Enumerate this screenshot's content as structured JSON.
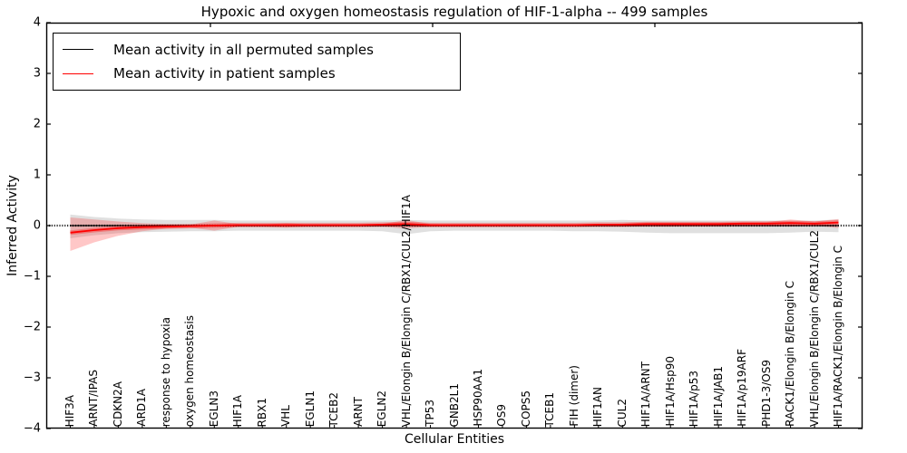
{
  "chart_data": {
    "type": "line",
    "title": "Hypoxic and oxygen homeostasis regulation of HIF-1-alpha -- 499 samples",
    "sample_count": 499,
    "xlabel": "Cellular Entities",
    "ylabel": "Inferred Activity",
    "ylim": [
      -4,
      4
    ],
    "yticks": [
      4,
      3,
      2,
      1,
      0,
      -1,
      -2,
      -3,
      -4
    ],
    "grid": false,
    "zero_line": true,
    "legend": {
      "position": "upper left",
      "entries": [
        {
          "label": "Mean activity in all permuted samples",
          "color": "#000000"
        },
        {
          "label": "Mean activity in patient samples",
          "color": "#ff0000"
        }
      ]
    },
    "categories": [
      "HIF3A",
      "ARNT/IPAS",
      "CDKN2A",
      "ARD1A",
      "response to hypoxia",
      "oxygen homeostasis",
      "EGLN3",
      "HIF1A",
      "RBX1",
      "VHL",
      "EGLN1",
      "TCEB2",
      "ARNT",
      "EGLN2",
      "VHL/Elongin B/Elongin C/RBX1/CUL2/HIF1A",
      "TP53",
      "GNB2L1",
      "HSP90AA1",
      "OS9",
      "COPS5",
      "TCEB1",
      "FIH (dimer)",
      "HIF1AN",
      "CUL2",
      "HIF1A/ARNT",
      "HIF1A/Hsp90",
      "HIF1A/p53",
      "HIF1A/JAB1",
      "HIF1A/p19ARF",
      "PHD1-3/OS9",
      "RACK1/Elongin B/Elongin C",
      "VHL/Elongin B/Elongin C/RBX1/CUL2",
      "HIF1A/RACK1/Elongin B/Elongin C"
    ],
    "series": [
      {
        "name": "Mean activity in all permuted samples",
        "color": "#000000",
        "values": [
          0,
          0,
          0,
          0,
          0,
          0,
          0,
          0,
          0,
          0,
          0,
          0,
          0,
          0,
          0,
          0,
          0,
          0,
          0,
          0,
          0,
          0,
          0,
          0,
          0,
          0,
          0,
          0,
          0,
          0,
          0,
          0,
          0
        ]
      },
      {
        "name": "Mean activity in patient samples",
        "color": "#ff0000",
        "values": [
          -0.14,
          -0.09,
          -0.05,
          -0.03,
          -0.02,
          -0.01,
          0.0,
          0.01,
          0.01,
          0.01,
          0.01,
          0.01,
          0.01,
          0.02,
          0.03,
          0.01,
          0.01,
          0.01,
          0.01,
          0.01,
          0.01,
          0.01,
          0.02,
          0.02,
          0.03,
          0.03,
          0.03,
          0.03,
          0.04,
          0.04,
          0.05,
          0.04,
          0.06
        ]
      }
    ],
    "bands": [
      {
        "name": "permuted-samples-range",
        "color": "rgba(0,0,0,0.12)",
        "upper": [
          0.22,
          0.17,
          0.14,
          0.12,
          0.11,
          0.11,
          0.11,
          0.1,
          0.1,
          0.1,
          0.1,
          0.1,
          0.1,
          0.1,
          0.11,
          0.1,
          0.1,
          0.1,
          0.1,
          0.1,
          0.1,
          0.1,
          0.1,
          0.11,
          0.1,
          0.1,
          0.1,
          0.1,
          0.1,
          0.1,
          0.1,
          0.1,
          0.12
        ],
        "lower": [
          -0.25,
          -0.19,
          -0.15,
          -0.13,
          -0.12,
          -0.11,
          -0.11,
          -0.1,
          -0.1,
          -0.1,
          -0.1,
          -0.1,
          -0.1,
          -0.11,
          -0.17,
          -0.11,
          -0.1,
          -0.1,
          -0.1,
          -0.1,
          -0.1,
          -0.11,
          -0.11,
          -0.12,
          -0.14,
          -0.15,
          -0.15,
          -0.15,
          -0.15,
          -0.15,
          -0.14,
          -0.12,
          -0.13
        ]
      },
      {
        "name": "patient-samples-range",
        "color": "rgba(255,0,0,0.22)",
        "upper": [
          0.16,
          0.12,
          0.08,
          0.05,
          0.03,
          0.02,
          0.1,
          0.03,
          0.02,
          0.05,
          0.02,
          0.02,
          0.02,
          0.03,
          0.11,
          0.03,
          0.02,
          0.02,
          0.02,
          0.02,
          0.02,
          0.02,
          0.03,
          0.04,
          0.06,
          0.06,
          0.06,
          0.06,
          0.07,
          0.07,
          0.12,
          0.08,
          0.13
        ],
        "lower": [
          -0.5,
          -0.33,
          -0.2,
          -0.11,
          -0.06,
          -0.04,
          -0.1,
          -0.02,
          -0.02,
          -0.04,
          -0.01,
          -0.01,
          -0.01,
          -0.02,
          -0.06,
          -0.02,
          -0.01,
          -0.01,
          -0.01,
          -0.01,
          -0.01,
          -0.01,
          -0.02,
          -0.02,
          -0.02,
          -0.02,
          -0.01,
          -0.01,
          -0.01,
          -0.01,
          -0.02,
          0.0,
          -0.05
        ]
      }
    ]
  },
  "colors": {
    "background": "#ffffff",
    "axis": "#000000",
    "permuted": "#000000",
    "patient": "#ff0000"
  }
}
